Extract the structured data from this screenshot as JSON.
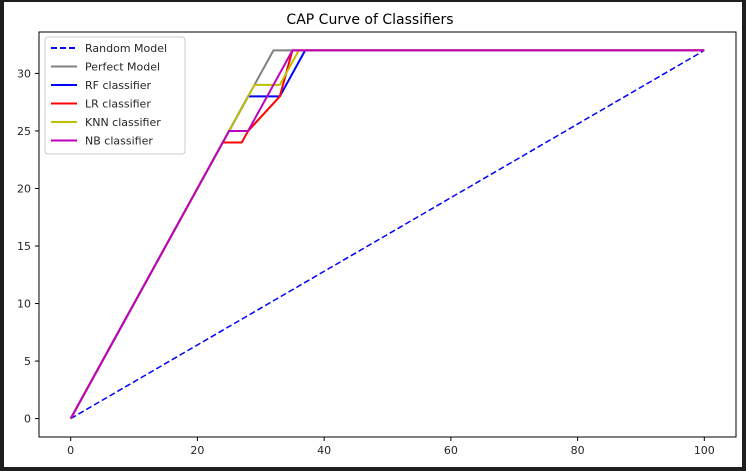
{
  "chart_data": {
    "type": "line",
    "title": "CAP Curve of Classifiers",
    "xlabel": "",
    "ylabel": "",
    "xlim": [
      -5,
      105
    ],
    "ylim": [
      -1.6,
      33.6
    ],
    "xticks": [
      0,
      20,
      40,
      60,
      80,
      100
    ],
    "yticks": [
      0,
      5,
      10,
      15,
      20,
      25,
      30
    ],
    "legend_position": "upper-left",
    "series": [
      {
        "name": "Random Model",
        "color": "#0000ff",
        "style": "dashed",
        "x": [
          0,
          100
        ],
        "y": [
          0,
          32
        ]
      },
      {
        "name": "Perfect Model",
        "color": "#808080",
        "style": "solid",
        "x": [
          0,
          32,
          100
        ],
        "y": [
          0,
          32,
          32
        ]
      },
      {
        "name": "RF classifier",
        "color": "#0000ff",
        "style": "solid",
        "x": [
          0,
          28,
          30,
          33,
          34,
          37,
          100
        ],
        "y": [
          0,
          28,
          28,
          28,
          29,
          32,
          32
        ]
      },
      {
        "name": "LR classifier",
        "color": "#ff0000",
        "style": "solid",
        "x": [
          0,
          24,
          27,
          28,
          33,
          35,
          100
        ],
        "y": [
          0,
          24,
          24,
          25,
          28,
          32,
          32
        ]
      },
      {
        "name": "KNN classifier",
        "color": "#bfbf00",
        "style": "solid",
        "x": [
          0,
          29,
          33,
          36,
          100
        ],
        "y": [
          0,
          29,
          29,
          32,
          32
        ]
      },
      {
        "name": "NB classifier",
        "color": "#bf00bf",
        "style": "solid",
        "x": [
          0,
          25,
          28,
          35,
          100
        ],
        "y": [
          0,
          25,
          25,
          32,
          32
        ]
      }
    ]
  }
}
